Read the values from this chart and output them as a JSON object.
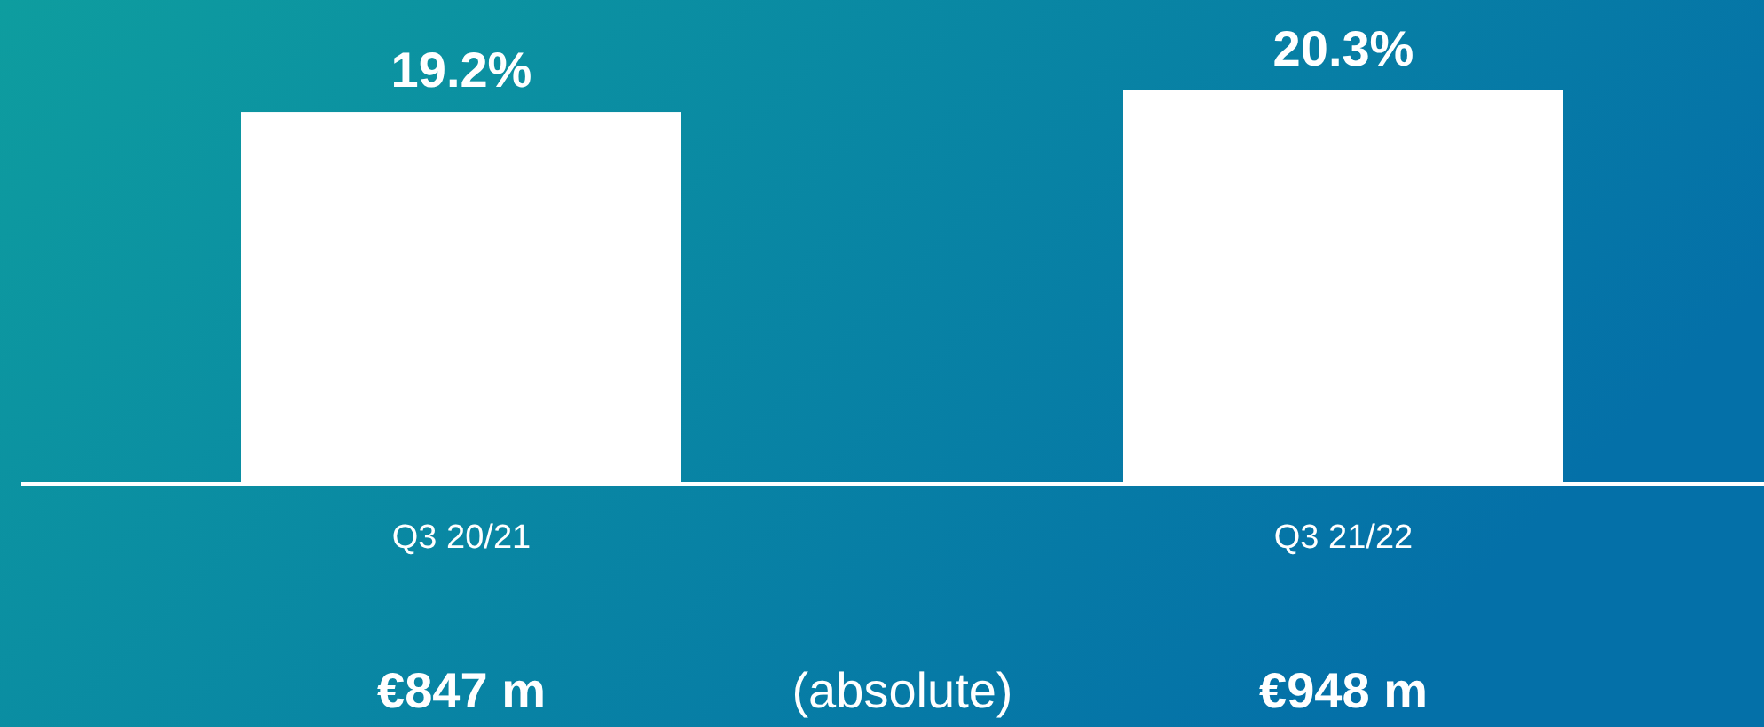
{
  "chart_data": {
    "type": "bar",
    "categories": [
      "Q3 20/21",
      "Q3 21/22"
    ],
    "values": [
      19.2,
      20.3
    ],
    "color": "#ffffff",
    "value_labels": [
      "19.2%",
      "20.3%"
    ],
    "annotations": [
      "€847 m",
      "(absolute)",
      "€948 m"
    ]
  }
}
